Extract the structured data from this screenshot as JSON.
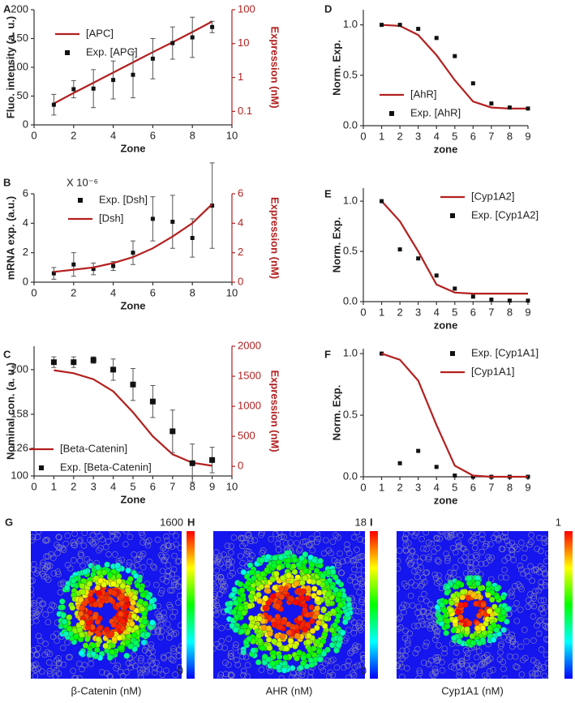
{
  "chart_data": [
    {
      "type": "line",
      "label": "A",
      "xlabel": "Zone",
      "ylabel": "Fluo. intensity (a. u.)",
      "y2label": "Expression (nM)",
      "xlim": [
        0,
        10
      ],
      "xticks": [
        0,
        2,
        4,
        6,
        8,
        10
      ],
      "ylim": [
        0,
        200
      ],
      "yticks": [
        0,
        50,
        100,
        150,
        200
      ],
      "y2lim": [
        0.04,
        100
      ],
      "y2ticks": [
        0.1,
        1,
        10,
        100
      ],
      "y2scale": "log",
      "x": [
        1,
        2,
        3,
        4,
        5,
        6,
        7,
        8,
        9
      ],
      "series": [
        {
          "name": "[APC]",
          "color": "#b3201f",
          "style": "line",
          "axis": "y2",
          "values": [
            0.17,
            0.35,
            0.7,
            1.4,
            2.8,
            5.6,
            11,
            22,
            45
          ]
        },
        {
          "name": "Exp. [APC]",
          "color": "#111111",
          "style": "markers",
          "values": [
            35,
            62,
            63,
            78,
            87,
            115,
            142,
            152,
            170
          ],
          "errors": [
            18,
            15,
            33,
            33,
            40,
            35,
            28,
            35,
            10
          ]
        }
      ]
    },
    {
      "type": "line",
      "label": "B",
      "xlabel": "Zone",
      "ylabel": "mRNA exp. (a.u.)",
      "y2label": "Expression (nM)",
      "annotation": "X 10⁻⁶",
      "xlim": [
        0,
        10
      ],
      "xticks": [
        0,
        2,
        4,
        6,
        8,
        10
      ],
      "ylim": [
        0,
        6
      ],
      "yticks": [
        0,
        2,
        4,
        6
      ],
      "y2lim": [
        0,
        6
      ],
      "y2ticks": [
        0,
        2,
        4,
        6
      ],
      "x": [
        1,
        2,
        3,
        4,
        5,
        6,
        7,
        8,
        9
      ],
      "series": [
        {
          "name": "Exp. [Dsh]",
          "color": "#111111",
          "style": "markers",
          "values": [
            0.6,
            1.2,
            0.9,
            1.1,
            2.0,
            4.3,
            4.1,
            3.0,
            5.2
          ],
          "errors": [
            0.4,
            0.8,
            0.4,
            0.3,
            0.8,
            1.5,
            1.8,
            1.3,
            2.9
          ]
        },
        {
          "name": "[Dsh]",
          "color": "#b3201f",
          "style": "line",
          "axis": "y2",
          "values": [
            0.7,
            0.85,
            1.0,
            1.3,
            1.7,
            2.3,
            3.1,
            4.0,
            5.3
          ]
        }
      ]
    },
    {
      "type": "line",
      "label": "C",
      "xlabel": "Zone",
      "ylabel": "Nominal con. (a. u.)",
      "y2label": "Expression (nM)",
      "xlim": [
        0,
        10
      ],
      "xticks": [
        0,
        1,
        2,
        3,
        4,
        5,
        6,
        7,
        8,
        9,
        10
      ],
      "ylim": [
        100,
        222
      ],
      "yticks": [
        100,
        126,
        158,
        200
      ],
      "y2lim": [
        -160,
        2000
      ],
      "y2ticks": [
        0,
        500,
        1000,
        1500,
        2000
      ],
      "x": [
        1,
        2,
        3,
        4,
        5,
        6,
        7,
        8,
        9
      ],
      "series": [
        {
          "name": "[Beta-Catenin]",
          "color": "#b3201f",
          "style": "line",
          "axis": "y2",
          "values": [
            1600,
            1550,
            1450,
            1250,
            900,
            500,
            200,
            60,
            10
          ]
        },
        {
          "name": "Exp. [Beta-Catenin]",
          "color": "#111111",
          "style": "markers",
          "values": [
            207,
            207,
            209,
            200,
            186,
            170,
            142,
            112,
            115
          ],
          "errors": [
            5,
            5,
            3,
            10,
            15,
            15,
            20,
            18,
            12
          ]
        }
      ]
    },
    {
      "type": "line",
      "label": "D",
      "xlabel": "zone",
      "ylabel": "Norm. Exp.",
      "xlim": [
        0,
        9
      ],
      "xticks": [
        0,
        1,
        2,
        3,
        4,
        5,
        6,
        7,
        8,
        9
      ],
      "ylim": [
        0,
        1.15
      ],
      "yticks": [
        {
          "value": 0,
          "label": "0.0"
        },
        0.5,
        {
          "value": 1,
          "label": "1.0"
        }
      ],
      "x": [
        1,
        2,
        3,
        4,
        5,
        6,
        7,
        8,
        9
      ],
      "series": [
        {
          "name": "[AhR]",
          "color": "#b3201f",
          "style": "line",
          "values": [
            1.0,
            0.99,
            0.9,
            0.7,
            0.45,
            0.24,
            0.18,
            0.17,
            0.17
          ]
        },
        {
          "name": "Exp. [AhR]",
          "color": "#111111",
          "style": "markers",
          "values": [
            1.0,
            1.0,
            0.96,
            0.87,
            0.69,
            0.42,
            0.22,
            0.18,
            0.17
          ]
        }
      ]
    },
    {
      "type": "line",
      "label": "E",
      "xlabel": "zone",
      "ylabel": "Norm. Exp.",
      "xlim": [
        0,
        9
      ],
      "xticks": [
        0,
        1,
        2,
        3,
        4,
        5,
        6,
        7,
        8,
        9
      ],
      "ylim": [
        0,
        1.13
      ],
      "yticks": [
        {
          "value": 0,
          "label": "0.0"
        },
        0.5,
        {
          "value": 1,
          "label": "1.0"
        }
      ],
      "x": [
        1,
        2,
        3,
        4,
        5,
        6,
        7,
        8,
        9
      ],
      "series": [
        {
          "name": "[Cyp1A2]",
          "color": "#b3201f",
          "style": "line",
          "values": [
            1.0,
            0.8,
            0.5,
            0.17,
            0.09,
            0.08,
            0.08,
            0.08,
            0.08
          ]
        },
        {
          "name": "Exp. [Cyp1A2]",
          "color": "#111111",
          "style": "markers",
          "values": [
            1.0,
            0.52,
            0.43,
            0.26,
            0.13,
            0.05,
            0.02,
            0.01,
            0.01
          ]
        }
      ]
    },
    {
      "type": "line",
      "label": "F",
      "xlabel": "zone",
      "ylabel": "Norm. Exp.",
      "xlim": [
        0,
        9
      ],
      "xticks": [
        0,
        1,
        2,
        3,
        4,
        5,
        6,
        7,
        8,
        9
      ],
      "ylim": [
        0,
        1.04
      ],
      "yticks": [
        {
          "value": 0,
          "label": "0.0"
        },
        0.5,
        {
          "value": 1,
          "label": "1.0"
        }
      ],
      "x": [
        1,
        2,
        3,
        4,
        5,
        6,
        7,
        8,
        9
      ],
      "series": [
        {
          "name": "Exp. [Cyp1A1]",
          "color": "#111111",
          "style": "markers",
          "values": [
            1.0,
            0.11,
            0.21,
            0.08,
            0.01,
            0.0,
            0.0,
            0.0,
            0.0
          ]
        },
        {
          "name": "[Cyp1A1]",
          "color": "#b3201f",
          "style": "line",
          "values": [
            1.0,
            0.95,
            0.78,
            0.42,
            0.09,
            0.01,
            0.0,
            0.0,
            0.0
          ]
        }
      ]
    }
  ],
  "heatmaps": [
    {
      "label": "G",
      "max": 1600,
      "min": 0,
      "caption": "β-Catenin (nM)"
    },
    {
      "label": "H",
      "max": 18,
      "min": 0,
      "caption": "AHR (nM)"
    },
    {
      "label": "I",
      "max": 1,
      "caption": "Cyp1A1 (nM)"
    }
  ]
}
